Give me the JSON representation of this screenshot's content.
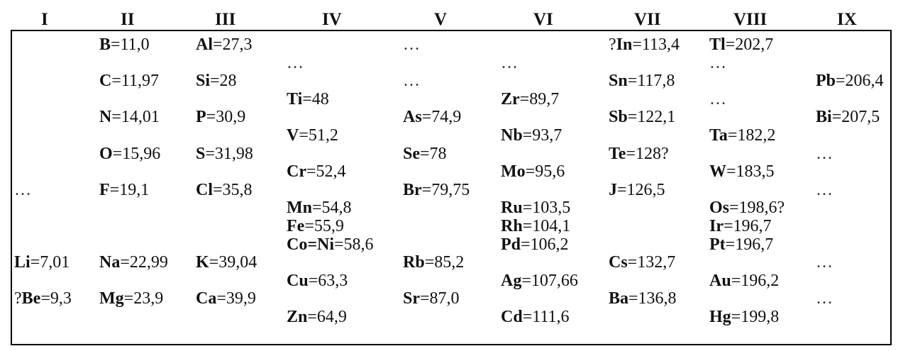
{
  "headers": [
    "I",
    "II",
    "III",
    "IV",
    "V",
    "VI",
    "VII",
    "VIII",
    "IX"
  ],
  "cells": [
    {
      "pre": "",
      "sym": "B",
      "val": "=11,0",
      "col": 2,
      "row": 0
    },
    {
      "pre": "",
      "sym": "Al",
      "val": "=27,3",
      "col": 3,
      "row": 0
    },
    {
      "dots": "…",
      "col": 5,
      "row": 0
    },
    {
      "pre": "?",
      "sym": "In",
      "val": "=113,4",
      "col": 7,
      "row": 0
    },
    {
      "pre": "",
      "sym": "Tl",
      "val": "=202,7",
      "col": 8,
      "row": 0
    },
    {
      "dots": "…",
      "col": 4,
      "row": 1
    },
    {
      "dots": "…",
      "col": 6,
      "row": 1
    },
    {
      "dots": "…",
      "col": 8,
      "row": 1
    },
    {
      "pre": "",
      "sym": "C",
      "val": "=11,97",
      "col": 2,
      "row": 2
    },
    {
      "pre": "",
      "sym": "Si",
      "val": "=28",
      "col": 3,
      "row": 2
    },
    {
      "dots": "…",
      "col": 5,
      "row": 2
    },
    {
      "pre": "",
      "sym": "Sn",
      "val": "=117,8",
      "col": 7,
      "row": 2
    },
    {
      "pre": "",
      "sym": "Pb",
      "val": "=206,4",
      "col": 9,
      "row": 2
    },
    {
      "pre": "",
      "sym": "Ti",
      "val": "=48",
      "col": 4,
      "row": 3
    },
    {
      "pre": "",
      "sym": "Zr",
      "val": "=89,7",
      "col": 6,
      "row": 3
    },
    {
      "dots": "…",
      "col": 8,
      "row": 3
    },
    {
      "pre": "",
      "sym": "N",
      "val": "=14,01",
      "col": 2,
      "row": 4
    },
    {
      "pre": "",
      "sym": "P",
      "val": "=30,9",
      "col": 3,
      "row": 4
    },
    {
      "pre": "",
      "sym": "As",
      "val": "=74,9",
      "col": 5,
      "row": 4
    },
    {
      "pre": "",
      "sym": "Sb",
      "val": "=122,1",
      "col": 7,
      "row": 4
    },
    {
      "pre": "",
      "sym": "Bi",
      "val": "=207,5",
      "col": 9,
      "row": 4
    },
    {
      "pre": "",
      "sym": "V",
      "val": "=51,2",
      "col": 4,
      "row": 5
    },
    {
      "pre": "",
      "sym": "Nb",
      "val": "=93,7",
      "col": 6,
      "row": 5
    },
    {
      "pre": "",
      "sym": "Ta",
      "val": "=182,2",
      "col": 8,
      "row": 5
    },
    {
      "pre": "",
      "sym": "O",
      "val": "=15,96",
      "col": 2,
      "row": 6
    },
    {
      "pre": "",
      "sym": "S",
      "val": "=31,98",
      "col": 3,
      "row": 6
    },
    {
      "pre": "",
      "sym": "Se",
      "val": "=78",
      "col": 5,
      "row": 6
    },
    {
      "pre": "",
      "sym": "Te",
      "val": "=128?",
      "col": 7,
      "row": 6
    },
    {
      "dots": "…",
      "col": 9,
      "row": 6
    },
    {
      "pre": "",
      "sym": "Cr",
      "val": "=52,4",
      "col": 4,
      "row": 7
    },
    {
      "pre": "",
      "sym": "Mo",
      "val": "=95,6",
      "col": 6,
      "row": 7
    },
    {
      "pre": "",
      "sym": "W",
      "val": "=183,5",
      "col": 8,
      "row": 7
    },
    {
      "dots": "…",
      "col": 1,
      "row": 8
    },
    {
      "pre": "",
      "sym": "F",
      "val": "=19,1",
      "col": 2,
      "row": 8
    },
    {
      "pre": "",
      "sym": "Cl",
      "val": "=35,8",
      "col": 3,
      "row": 8
    },
    {
      "pre": "",
      "sym": "Br",
      "val": "=79,75",
      "col": 5,
      "row": 8
    },
    {
      "pre": "",
      "sym": "J",
      "val": "=126,5",
      "col": 7,
      "row": 8
    },
    {
      "dots": "…",
      "col": 9,
      "row": 8
    },
    {
      "pre": "",
      "sym": "Mn",
      "val": "=54,8",
      "col": 4,
      "row": 9
    },
    {
      "pre": "",
      "sym": "Ru",
      "val": "=103,5",
      "col": 6,
      "row": 9
    },
    {
      "pre": "",
      "sym": "Os",
      "val": "=198,6?",
      "col": 8,
      "row": 9
    },
    {
      "pre": "",
      "sym": "Fe",
      "val": "=55,9",
      "col": 4,
      "row": 10
    },
    {
      "pre": "",
      "sym": "Rh",
      "val": "=104,1",
      "col": 6,
      "row": 10
    },
    {
      "pre": "",
      "sym": "Ir",
      "val": "=196,7",
      "col": 8,
      "row": 10
    },
    {
      "pre": "",
      "sym": "Co=Ni",
      "val": "=58,6",
      "col": 4,
      "row": 11
    },
    {
      "pre": "",
      "sym": "Pd",
      "val": "=106,2",
      "col": 6,
      "row": 11
    },
    {
      "pre": "",
      "sym": "Pt",
      "val": "=196,7",
      "col": 8,
      "row": 11
    },
    {
      "pre": "",
      "sym": "Li",
      "val": "=7,01",
      "col": 1,
      "row": 12
    },
    {
      "pre": "",
      "sym": "Na",
      "val": "=22,99",
      "col": 2,
      "row": 12
    },
    {
      "pre": "",
      "sym": "K",
      "val": "=39,04",
      "col": 3,
      "row": 12
    },
    {
      "pre": "",
      "sym": "Rb",
      "val": "=85,2",
      "col": 5,
      "row": 12
    },
    {
      "pre": "",
      "sym": "Cs",
      "val": "=132,7",
      "col": 7,
      "row": 12
    },
    {
      "dots": "…",
      "col": 9,
      "row": 12
    },
    {
      "pre": "",
      "sym": "Cu",
      "val": "=63,3",
      "col": 4,
      "row": 13
    },
    {
      "pre": "",
      "sym": "Ag",
      "val": "=107,66",
      "col": 6,
      "row": 13
    },
    {
      "pre": "",
      "sym": "Au",
      "val": "=196,2",
      "col": 8,
      "row": 13
    },
    {
      "pre": "?",
      "sym": "Be",
      "val": "=9,3",
      "col": 1,
      "row": 14
    },
    {
      "pre": "",
      "sym": "Mg",
      "val": "=23,9",
      "col": 2,
      "row": 14
    },
    {
      "pre": "",
      "sym": "Ca",
      "val": "=39,9",
      "col": 3,
      "row": 14
    },
    {
      "pre": "",
      "sym": "Sr",
      "val": "=87,0",
      "col": 5,
      "row": 14
    },
    {
      "pre": "",
      "sym": "Ba",
      "val": "=136,8",
      "col": 7,
      "row": 14
    },
    {
      "dots": "…",
      "col": 9,
      "row": 14
    },
    {
      "pre": "",
      "sym": "Zn",
      "val": "=64,9",
      "col": 4,
      "row": 15
    },
    {
      "pre": "",
      "sym": "Cd",
      "val": "=111,6",
      "col": 6,
      "row": 15
    },
    {
      "pre": "",
      "sym": "Hg",
      "val": "=199,8",
      "col": 8,
      "row": 15
    }
  ]
}
